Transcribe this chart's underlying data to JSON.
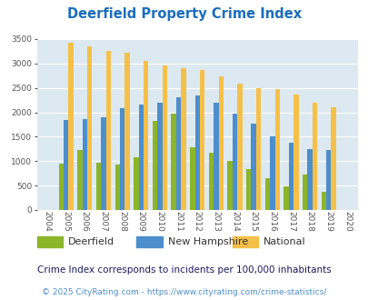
{
  "title": "Deerfield Property Crime Index",
  "years": [
    2004,
    2005,
    2006,
    2007,
    2008,
    2009,
    2010,
    2011,
    2012,
    2013,
    2014,
    2015,
    2016,
    2017,
    2018,
    2019,
    2020
  ],
  "deerfield": [
    0,
    950,
    1220,
    960,
    930,
    1080,
    1820,
    1980,
    1280,
    1170,
    1010,
    840,
    650,
    490,
    720,
    380,
    0
  ],
  "new_hampshire": [
    0,
    1840,
    1860,
    1890,
    2090,
    2150,
    2190,
    2300,
    2350,
    2190,
    1970,
    1760,
    1510,
    1380,
    1240,
    1220,
    0
  ],
  "national": [
    0,
    3420,
    3340,
    3260,
    3210,
    3050,
    2950,
    2910,
    2860,
    2730,
    2590,
    2500,
    2470,
    2370,
    2200,
    2110,
    0
  ],
  "deerfield_color": "#8db52a",
  "nh_color": "#4d8fcc",
  "national_color": "#f5c04a",
  "bg_color": "#dce9f0",
  "ylim": [
    0,
    3500
  ],
  "yticks": [
    0,
    500,
    1000,
    1500,
    2000,
    2500,
    3000,
    3500
  ],
  "subtitle": "Crime Index corresponds to incidents per 100,000 inhabitants",
  "footer": "© 2025 CityRating.com - https://www.cityrating.com/crime-statistics/",
  "title_color": "#1a6ebd",
  "subtitle_color": "#1a1a60",
  "footer_color": "#4d8fcc"
}
